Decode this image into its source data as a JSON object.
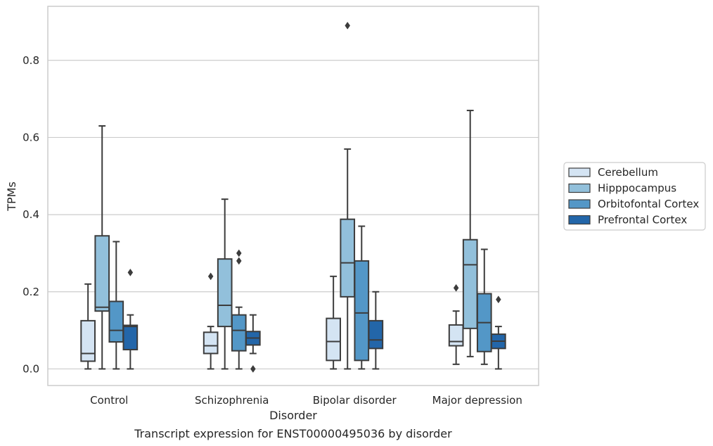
{
  "chart_data": {
    "type": "box",
    "xlabel": "Disorder",
    "ylabel": "TPMs",
    "caption": "Transcript expression for ENST00000495036 by disorder",
    "ylim": [
      -0.043,
      0.94
    ],
    "yticks": [
      0.0,
      0.2,
      0.4,
      0.6,
      0.8
    ],
    "ytick_labels": [
      "0.0",
      "0.2",
      "0.4",
      "0.6",
      "0.8"
    ],
    "grid": "horizontal",
    "legend_position": "right",
    "categories": [
      "Control",
      "Schizophrenia",
      "Bipolar disorder",
      "Major depression"
    ],
    "series": [
      {
        "name": "Cerebellum",
        "color": "#d4e4f3",
        "boxes": [
          {
            "whislo": 0.0,
            "q1": 0.02,
            "med": 0.04,
            "q3": 0.125,
            "whishi": 0.22,
            "fliers": []
          },
          {
            "whislo": 0.0,
            "q1": 0.04,
            "med": 0.06,
            "q3": 0.095,
            "whishi": 0.11,
            "fliers": [
              0.24
            ]
          },
          {
            "whislo": 0.0,
            "q1": 0.022,
            "med": 0.071,
            "q3": 0.131,
            "whishi": 0.24,
            "fliers": []
          },
          {
            "whislo": 0.012,
            "q1": 0.06,
            "med": 0.071,
            "q3": 0.114,
            "whishi": 0.15,
            "fliers": [
              0.21
            ]
          }
        ]
      },
      {
        "name": "Hipppocampus",
        "color": "#92c0db",
        "boxes": [
          {
            "whislo": 0.0,
            "q1": 0.15,
            "med": 0.16,
            "q3": 0.345,
            "whishi": 0.63,
            "fliers": []
          },
          {
            "whislo": 0.0,
            "q1": 0.11,
            "med": 0.165,
            "q3": 0.285,
            "whishi": 0.44,
            "fliers": []
          },
          {
            "whislo": 0.0,
            "q1": 0.187,
            "med": 0.275,
            "q3": 0.388,
            "whishi": 0.57,
            "fliers": [
              0.89
            ]
          },
          {
            "whislo": 0.032,
            "q1": 0.105,
            "med": 0.27,
            "q3": 0.335,
            "whishi": 0.67,
            "fliers": []
          }
        ]
      },
      {
        "name": "Orbitofontal Cortex",
        "color": "#5397c7",
        "boxes": [
          {
            "whislo": 0.0,
            "q1": 0.07,
            "med": 0.1,
            "q3": 0.175,
            "whishi": 0.33,
            "fliers": []
          },
          {
            "whislo": 0.0,
            "q1": 0.047,
            "med": 0.1,
            "q3": 0.14,
            "whishi": 0.16,
            "fliers": [
              0.28,
              0.3
            ]
          },
          {
            "whislo": 0.0,
            "q1": 0.022,
            "med": 0.145,
            "q3": 0.28,
            "whishi": 0.37,
            "fliers": []
          },
          {
            "whislo": 0.012,
            "q1": 0.045,
            "med": 0.12,
            "q3": 0.195,
            "whishi": 0.31,
            "fliers": []
          }
        ]
      },
      {
        "name": "Prefrontal Cortex",
        "color": "#2366a9",
        "boxes": [
          {
            "whislo": 0.0,
            "q1": 0.05,
            "med": 0.11,
            "q3": 0.113,
            "whishi": 0.14,
            "fliers": [
              0.25
            ]
          },
          {
            "whislo": 0.04,
            "q1": 0.062,
            "med": 0.08,
            "q3": 0.097,
            "whishi": 0.14,
            "fliers": [
              0.0
            ]
          },
          {
            "whislo": 0.0,
            "q1": 0.053,
            "med": 0.075,
            "q3": 0.125,
            "whishi": 0.2,
            "fliers": []
          },
          {
            "whislo": 0.0,
            "q1": 0.053,
            "med": 0.072,
            "q3": 0.09,
            "whishi": 0.11,
            "fliers": [
              0.18
            ]
          }
        ]
      }
    ]
  }
}
